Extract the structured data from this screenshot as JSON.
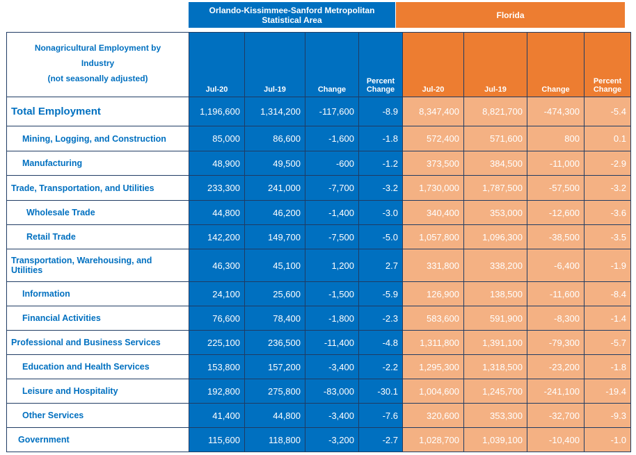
{
  "banners": {
    "orlando": "Orlando-Kissimmee-Sanford Metropolitan Statistical Area",
    "florida": "Florida"
  },
  "header": {
    "label_line1": "Nonagricultural Employment by",
    "label_line2": "Industry",
    "label_line3": "(not seasonally adjusted)",
    "columns": [
      "Jul-20",
      "Jul-19",
      "Change",
      "Percent Change",
      "Jul-20",
      "Jul-19",
      "Change",
      "Percent Change"
    ]
  },
  "rows": [
    {
      "name": "Total Employment",
      "values": [
        "1,196,600",
        "1,314,200",
        "-117,600",
        "-8.9",
        "8,347,400",
        "8,821,700",
        "-474,300",
        "-5.4"
      ]
    },
    {
      "name": "Mining, Logging, and Construction",
      "values": [
        "85,000",
        "86,600",
        "-1,600",
        "-1.8",
        "572,400",
        "571,600",
        "800",
        "0.1"
      ]
    },
    {
      "name": "Manufacturing",
      "values": [
        "48,900",
        "49,500",
        "-600",
        "-1.2",
        "373,500",
        "384,500",
        "-11,000",
        "-2.9"
      ]
    },
    {
      "name": "Trade, Transportation, and Utilities",
      "values": [
        "233,300",
        "241,000",
        "-7,700",
        "-3.2",
        "1,730,000",
        "1,787,500",
        "-57,500",
        "-3.2"
      ]
    },
    {
      "name": "Wholesale Trade",
      "values": [
        "44,800",
        "46,200",
        "-1,400",
        "-3.0",
        "340,400",
        "353,000",
        "-12,600",
        "-3.6"
      ]
    },
    {
      "name": "Retail Trade",
      "values": [
        "142,200",
        "149,700",
        "-7,500",
        "-5.0",
        "1,057,800",
        "1,096,300",
        "-38,500",
        "-3.5"
      ]
    },
    {
      "name": "Transportation, Warehousing, and Utilities",
      "values": [
        "46,300",
        "45,100",
        "1,200",
        "2.7",
        "331,800",
        "338,200",
        "-6,400",
        "-1.9"
      ]
    },
    {
      "name": "Information",
      "values": [
        "24,100",
        "25,600",
        "-1,500",
        "-5.9",
        "126,900",
        "138,500",
        "-11,600",
        "-8.4"
      ]
    },
    {
      "name": "Financial Activities",
      "values": [
        "76,600",
        "78,400",
        "-1,800",
        "-2.3",
        "583,600",
        "591,900",
        "-8,300",
        "-1.4"
      ]
    },
    {
      "name": "Professional and Business Services",
      "values": [
        "225,100",
        "236,500",
        "-11,400",
        "-4.8",
        "1,311,800",
        "1,391,100",
        "-79,300",
        "-5.7"
      ]
    },
    {
      "name": "Education and Health Services",
      "values": [
        "153,800",
        "157,200",
        "-3,400",
        "-2.2",
        "1,295,300",
        "1,318,500",
        "-23,200",
        "-1.8"
      ]
    },
    {
      "name": "Leisure and Hospitality",
      "values": [
        "192,800",
        "275,800",
        "-83,000",
        "-30.1",
        "1,004,600",
        "1,245,700",
        "-241,100",
        "-19.4"
      ]
    },
    {
      "name": "Other Services",
      "values": [
        "41,400",
        "44,800",
        "-3,400",
        "-7.6",
        "320,600",
        "353,300",
        "-32,700",
        "-9.3"
      ]
    },
    {
      "name": "Government",
      "values": [
        "115,600",
        "118,800",
        "-3,200",
        "-2.7",
        "1,028,700",
        "1,039,100",
        "-10,400",
        "-1.0"
      ]
    }
  ],
  "colors": {
    "orlando_blue": "#0070c0",
    "florida_orange": "#ed7d31",
    "florida_light": "#f4b183"
  }
}
